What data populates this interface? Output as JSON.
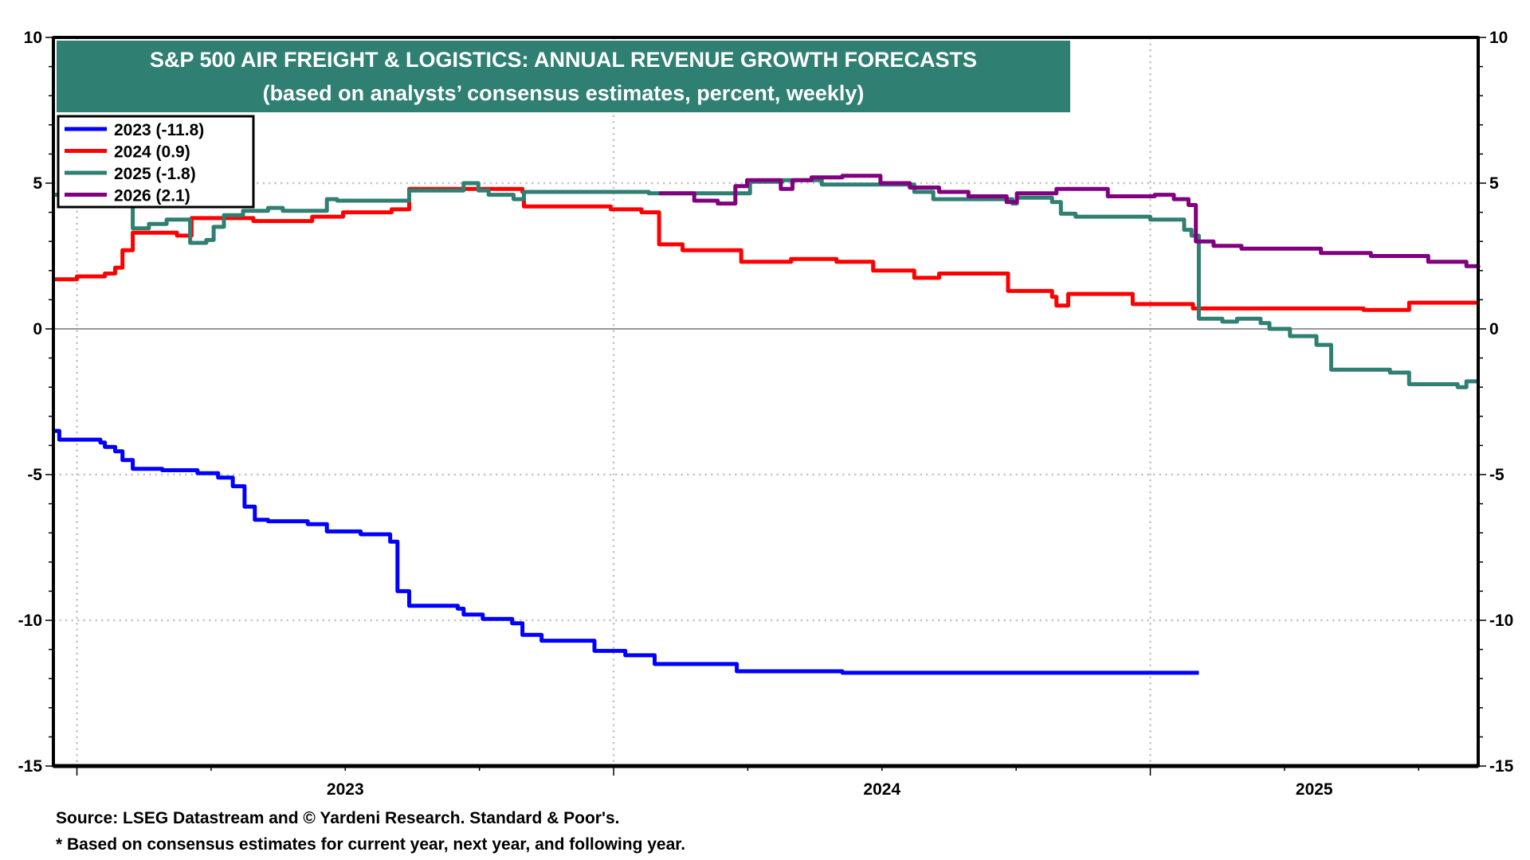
{
  "chart_data": {
    "type": "line",
    "title": "S&P 500 AIR FREIGHT & LOGISTICS: ANNUAL REVENUE GROWTH FORECASTS",
    "subtitle": "(based on analysts’ consensus estimates, percent, weekly)",
    "ylim": [
      -15,
      10
    ],
    "y_ticks": [
      "10",
      "5",
      "0",
      "-5",
      "-10",
      "-15"
    ],
    "y_tick_values": [
      10,
      5,
      0,
      -5,
      -10,
      -15
    ],
    "x_range": [
      "2022-12-16",
      "2025-08-12"
    ],
    "x_tick_labels": [
      {
        "label": "2023",
        "span": [
          "2023-01-01",
          "2024-01-01"
        ]
      },
      {
        "label": "2024",
        "span": [
          "2024-01-01",
          "2025-01-01"
        ]
      },
      {
        "label": "2025",
        "span": [
          "2025-01-01",
          "2025-08-12"
        ]
      }
    ],
    "x_gridlines": [
      "2023-01-01",
      "2024-01-01",
      "2025-01-01"
    ],
    "grid": "dotted at 5-unit y intervals and year starts; solid zero line",
    "legend_placement": "top-left",
    "series": [
      {
        "name": "2023 (-11.8)",
        "color": "#0000ff",
        "points": [
          [
            "2022-12-16",
            -3.5
          ],
          [
            "2022-12-20",
            -3.8
          ],
          [
            "2023-01-17",
            -3.9
          ],
          [
            "2023-01-20",
            -4.05
          ],
          [
            "2023-01-27",
            -4.2
          ],
          [
            "2023-02-01",
            -4.5
          ],
          [
            "2023-02-08",
            -4.8
          ],
          [
            "2023-02-28",
            -4.85
          ],
          [
            "2023-03-24",
            -4.95
          ],
          [
            "2023-04-07",
            -5.1
          ],
          [
            "2023-04-17",
            -5.4
          ],
          [
            "2023-04-25",
            -6.1
          ],
          [
            "2023-05-02",
            -6.55
          ],
          [
            "2023-05-11",
            -6.6
          ],
          [
            "2023-06-07",
            -6.7
          ],
          [
            "2023-06-20",
            -6.95
          ],
          [
            "2023-07-13",
            -7.05
          ],
          [
            "2023-08-02",
            -7.3
          ],
          [
            "2023-08-07",
            -9.0
          ],
          [
            "2023-08-15",
            -9.5
          ],
          [
            "2023-09-17",
            -9.6
          ],
          [
            "2023-09-21",
            -9.8
          ],
          [
            "2023-10-04",
            -9.95
          ],
          [
            "2023-10-24",
            -10.1
          ],
          [
            "2023-10-31",
            -10.5
          ],
          [
            "2023-11-13",
            -10.7
          ],
          [
            "2023-12-19",
            -11.05
          ],
          [
            "2024-01-09",
            -11.2
          ],
          [
            "2024-01-29",
            -11.5
          ],
          [
            "2024-03-25",
            -11.75
          ],
          [
            "2024-06-05",
            -11.8
          ],
          [
            "2025-02-03",
            -11.8
          ]
        ]
      },
      {
        "name": "2024 (0.9)",
        "color": "#ff0000",
        "points": [
          [
            "2022-12-16",
            1.7
          ],
          [
            "2023-01-01",
            1.8
          ],
          [
            "2023-01-20",
            1.9
          ],
          [
            "2023-01-27",
            2.1
          ],
          [
            "2023-02-01",
            2.7
          ],
          [
            "2023-02-08",
            3.3
          ],
          [
            "2023-03-10",
            3.2
          ],
          [
            "2023-03-20",
            3.8
          ],
          [
            "2023-05-01",
            3.7
          ],
          [
            "2023-06-10",
            3.85
          ],
          [
            "2023-07-01",
            4.0
          ],
          [
            "2023-08-03",
            4.1
          ],
          [
            "2023-08-15",
            4.8
          ],
          [
            "2023-10-31",
            4.7
          ],
          [
            "2023-11-01",
            4.2
          ],
          [
            "2023-12-30",
            4.1
          ],
          [
            "2024-01-20",
            4.0
          ],
          [
            "2024-02-01",
            2.9
          ],
          [
            "2024-02-17",
            2.7
          ],
          [
            "2024-03-28",
            2.3
          ],
          [
            "2024-05-01",
            2.4
          ],
          [
            "2024-06-01",
            2.3
          ],
          [
            "2024-06-26",
            2.0
          ],
          [
            "2024-07-24",
            1.75
          ],
          [
            "2024-08-10",
            1.9
          ],
          [
            "2024-09-26",
            1.3
          ],
          [
            "2024-10-26",
            1.1
          ],
          [
            "2024-10-29",
            0.8
          ],
          [
            "2024-11-06",
            1.2
          ],
          [
            "2024-12-20",
            0.85
          ],
          [
            "2025-01-30",
            0.7
          ],
          [
            "2025-05-26",
            0.65
          ],
          [
            "2025-06-26",
            0.9
          ],
          [
            "2025-08-12",
            0.9
          ]
        ]
      },
      {
        "name": "2025 (-1.8)",
        "color": "#2f7f72",
        "points": [
          [
            "2022-12-16",
            4.6
          ],
          [
            "2023-02-07",
            4.6
          ],
          [
            "2023-02-08",
            3.45
          ],
          [
            "2023-02-19",
            3.6
          ],
          [
            "2023-03-03",
            3.75
          ],
          [
            "2023-03-19",
            2.95
          ],
          [
            "2023-03-30",
            3.05
          ],
          [
            "2023-04-04",
            3.5
          ],
          [
            "2023-04-11",
            3.9
          ],
          [
            "2023-04-24",
            4.05
          ],
          [
            "2023-05-11",
            4.15
          ],
          [
            "2023-05-21",
            4.05
          ],
          [
            "2023-06-20",
            4.45
          ],
          [
            "2023-06-27",
            4.4
          ],
          [
            "2023-08-15",
            4.75
          ],
          [
            "2023-09-21",
            5.0
          ],
          [
            "2023-10-01",
            4.75
          ],
          [
            "2023-10-08",
            4.6
          ],
          [
            "2023-10-25",
            4.45
          ],
          [
            "2023-11-01",
            4.7
          ],
          [
            "2024-01-25",
            4.65
          ],
          [
            "2024-04-03",
            5.05
          ],
          [
            "2024-04-25",
            5.1
          ],
          [
            "2024-05-22",
            4.95
          ],
          [
            "2024-07-24",
            4.7
          ],
          [
            "2024-08-06",
            4.45
          ],
          [
            "2024-09-29",
            4.3
          ],
          [
            "2024-10-02",
            4.5
          ],
          [
            "2024-10-26",
            4.35
          ],
          [
            "2024-11-01",
            3.95
          ],
          [
            "2024-11-11",
            3.85
          ],
          [
            "2025-01-01",
            3.75
          ],
          [
            "2025-01-24",
            3.4
          ],
          [
            "2025-01-29",
            3.2
          ],
          [
            "2025-02-03",
            0.35
          ],
          [
            "2025-02-19",
            0.25
          ],
          [
            "2025-03-01",
            0.35
          ],
          [
            "2025-03-17",
            0.2
          ],
          [
            "2025-03-23",
            0.0
          ],
          [
            "2025-04-06",
            -0.25
          ],
          [
            "2025-04-24",
            -0.55
          ],
          [
            "2025-05-04",
            -1.4
          ],
          [
            "2025-06-13",
            -1.5
          ],
          [
            "2025-06-26",
            -1.9
          ],
          [
            "2025-07-29",
            -2.0
          ],
          [
            "2025-08-04",
            -1.8
          ],
          [
            "2025-08-12",
            -1.8
          ]
        ]
      },
      {
        "name": "2026 (2.1)",
        "color": "#800080",
        "points": [
          [
            "2024-02-01",
            4.65
          ],
          [
            "2024-02-25",
            4.4
          ],
          [
            "2024-03-12",
            4.3
          ],
          [
            "2024-03-24",
            4.9
          ],
          [
            "2024-04-01",
            5.1
          ],
          [
            "2024-04-24",
            4.8
          ],
          [
            "2024-05-02",
            5.1
          ],
          [
            "2024-05-15",
            5.2
          ],
          [
            "2024-06-05",
            5.25
          ],
          [
            "2024-07-01",
            5.0
          ],
          [
            "2024-07-21",
            4.85
          ],
          [
            "2024-08-10",
            4.7
          ],
          [
            "2024-08-30",
            4.55
          ],
          [
            "2024-09-25",
            4.35
          ],
          [
            "2024-10-02",
            4.65
          ],
          [
            "2024-10-29",
            4.8
          ],
          [
            "2024-12-03",
            4.55
          ],
          [
            "2025-01-04",
            4.6
          ],
          [
            "2025-01-17",
            4.45
          ],
          [
            "2025-01-27",
            4.25
          ],
          [
            "2025-02-01",
            3.0
          ],
          [
            "2025-02-13",
            2.85
          ],
          [
            "2025-03-04",
            2.75
          ],
          [
            "2025-04-27",
            2.6
          ],
          [
            "2025-05-31",
            2.5
          ],
          [
            "2025-07-09",
            2.3
          ],
          [
            "2025-08-04",
            2.15
          ],
          [
            "2025-08-12",
            2.1
          ]
        ]
      }
    ]
  },
  "footer": {
    "source": "Source: LSEG Datastream and © Yardeni Research. Standard & Poor's.",
    "note": "* Based on consensus estimates for current year, next year, and following year."
  },
  "colors": {
    "title_bg": "#2f7f72",
    "axis": "#000000",
    "grid": "#c8c8c8"
  }
}
